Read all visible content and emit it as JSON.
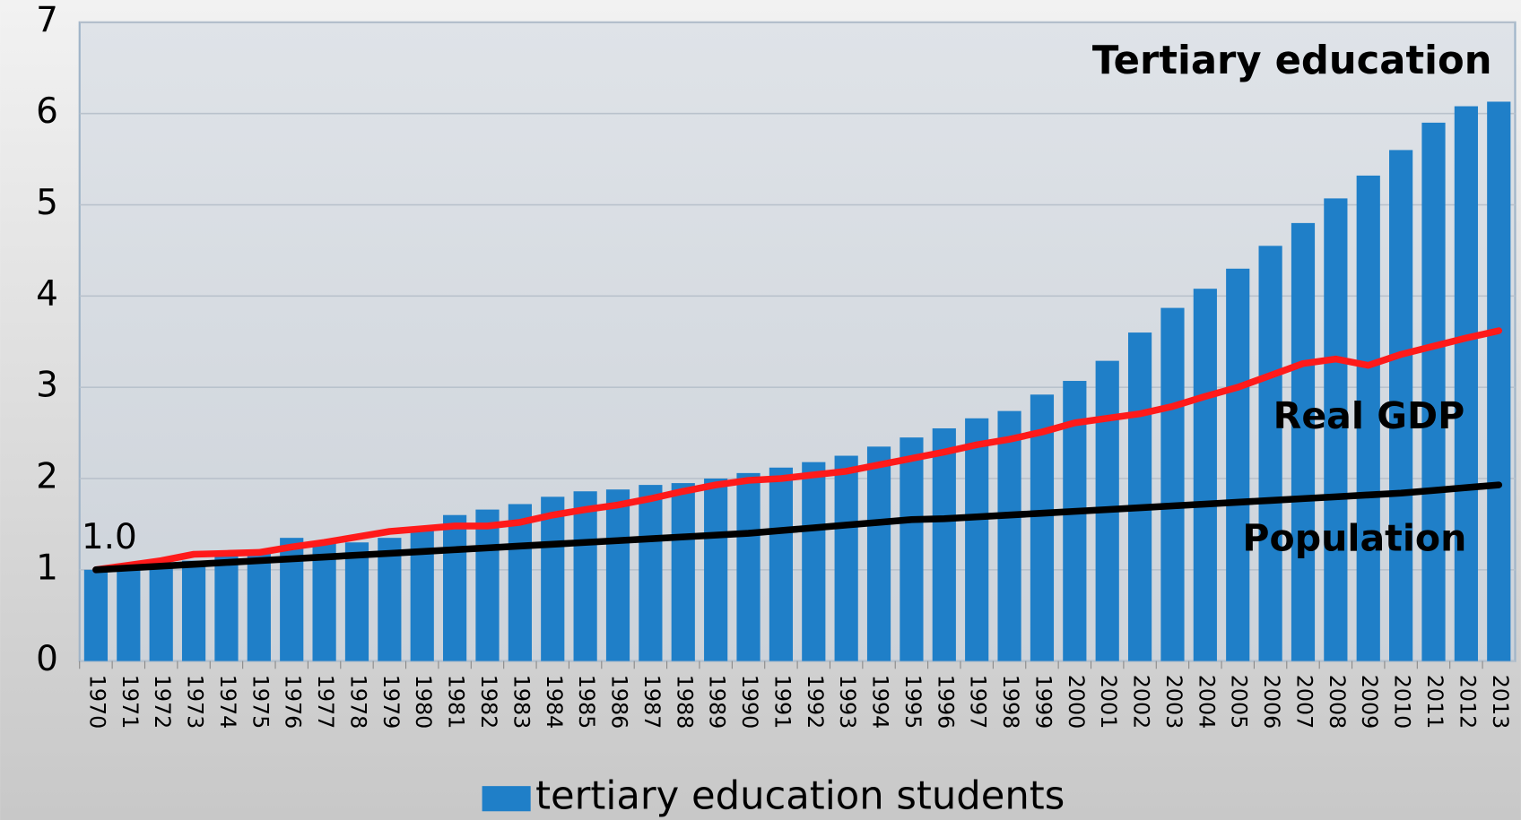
{
  "chart_data": {
    "type": "bar_line",
    "categories": [
      "1970",
      "1971",
      "1972",
      "1973",
      "1974",
      "1975",
      "1976",
      "1977",
      "1978",
      "1979",
      "1980",
      "1981",
      "1982",
      "1983",
      "1984",
      "1985",
      "1986",
      "1987",
      "1988",
      "1989",
      "1990",
      "1991",
      "1992",
      "1993",
      "1994",
      "1995",
      "1996",
      "1997",
      "1998",
      "1999",
      "2000",
      "2001",
      "2002",
      "2003",
      "2004",
      "2005",
      "2006",
      "2007",
      "2008",
      "2009",
      "2010",
      "2011",
      "2012",
      "2013"
    ],
    "series": [
      {
        "name": "tertiary education students",
        "color": "#1f7fc8",
        "kind": "bar",
        "values": [
          1.0,
          1.03,
          1.07,
          1.1,
          1.15,
          1.2,
          1.35,
          1.3,
          1.3,
          1.35,
          1.45,
          1.6,
          1.66,
          1.72,
          1.8,
          1.86,
          1.88,
          1.93,
          1.95,
          2.0,
          2.06,
          2.12,
          2.18,
          2.25,
          2.35,
          2.45,
          2.55,
          2.66,
          2.74,
          2.92,
          3.07,
          3.29,
          3.6,
          3.87,
          4.08,
          4.3,
          4.55,
          4.8,
          5.07,
          5.32,
          5.6,
          5.9,
          6.08,
          6.13
        ]
      },
      {
        "color": "#ff1a1a",
        "kind": "line",
        "values": [
          1.0,
          1.05,
          1.1,
          1.17,
          1.18,
          1.19,
          1.25,
          1.3,
          1.36,
          1.42,
          1.45,
          1.48,
          1.48,
          1.52,
          1.6,
          1.66,
          1.71,
          1.78,
          1.86,
          1.93,
          1.98,
          2.0,
          2.04,
          2.08,
          2.15,
          2.22,
          2.29,
          2.37,
          2.43,
          2.51,
          2.61,
          2.66,
          2.71,
          2.79,
          2.9,
          3.0,
          3.13,
          3.26,
          3.31,
          3.24,
          3.36,
          3.45,
          3.54,
          3.62
        ]
      },
      {
        "color": "#000000",
        "kind": "line",
        "values": [
          1.0,
          1.02,
          1.04,
          1.06,
          1.08,
          1.1,
          1.12,
          1.14,
          1.16,
          1.18,
          1.2,
          1.22,
          1.24,
          1.26,
          1.28,
          1.3,
          1.32,
          1.34,
          1.36,
          1.38,
          1.4,
          1.43,
          1.46,
          1.49,
          1.52,
          1.55,
          1.56,
          1.58,
          1.6,
          1.62,
          1.64,
          1.66,
          1.68,
          1.7,
          1.72,
          1.74,
          1.76,
          1.78,
          1.8,
          1.82,
          1.84,
          1.87,
          1.9,
          1.93
        ]
      }
    ],
    "annotations": [
      "Tertiary education",
      "Real GDP",
      "Population",
      "1.0"
    ],
    "ylim": [
      0,
      7
    ],
    "yticks": [
      0,
      1,
      2,
      3,
      4,
      5,
      6,
      7
    ],
    "grid": true,
    "legend": "bottom"
  }
}
